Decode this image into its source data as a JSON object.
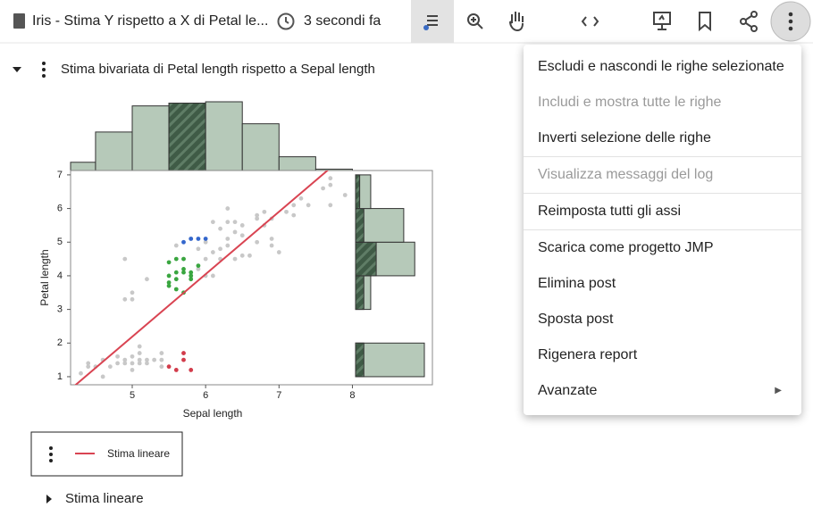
{
  "header": {
    "title": "Iris - Stima Y rispetto a X di Petal le...",
    "timestamp": "3 secondi fa"
  },
  "report": {
    "title": "Stima bivariata di Petal length rispetto a Sepal length",
    "chart": {
      "type": "scatter",
      "x_label": "Sepal length",
      "y_label": "Petal length",
      "xlim": [
        4.16,
        9.09
      ],
      "ylim": [
        0.76,
        7.13
      ],
      "xticks": [
        5,
        6,
        7,
        8
      ],
      "yticks": [
        1,
        2,
        3,
        4,
        5,
        6,
        7
      ],
      "series": [
        {
          "color": "#c8c8c8",
          "x": [
            4.3,
            4.4,
            4.5,
            4.6,
            4.7,
            4.8,
            4.8,
            4.9,
            4.9,
            5.0,
            5.0,
            5.0,
            5.1,
            5.1,
            5.1,
            5.1,
            5.2,
            5.3,
            5.4,
            5.4,
            5.4,
            5.2,
            4.4,
            4.6,
            4.9,
            5.0,
            5.0,
            5.2,
            4.9,
            5.6,
            5.8,
            6.0,
            6.1,
            6.2,
            6.3,
            6.3,
            6.4,
            6.5,
            6.7,
            6.9,
            7.2,
            7.7,
            7.7,
            7.9,
            7.6,
            7.3,
            7.1,
            6.8,
            6.7,
            6.6,
            6.5,
            6.4,
            6.2,
            6.1,
            6.0,
            5.9,
            6.3,
            6.4,
            6.5,
            6.7,
            6.9,
            7.0,
            6.9,
            6.3,
            6.1,
            5.8,
            5.7,
            5.9,
            6.0,
            6.2,
            7.2,
            7.4,
            7.7,
            6.8
          ],
          "y": [
            1.1,
            1.4,
            1.3,
            1.5,
            1.3,
            1.6,
            1.4,
            1.4,
            1.5,
            1.4,
            1.6,
            1.2,
            1.4,
            1.5,
            1.7,
            1.9,
            1.5,
            1.5,
            1.3,
            1.5,
            1.7,
            1.4,
            1.3,
            1.0,
            3.3,
            3.5,
            3.3,
            3.9,
            4.5,
            4.9,
            4.0,
            4.5,
            4.7,
            4.8,
            4.9,
            5.6,
            5.3,
            5.5,
            5.8,
            5.7,
            6.1,
            6.9,
            6.7,
            6.4,
            6.6,
            6.3,
            5.9,
            5.5,
            5.0,
            4.6,
            4.6,
            4.5,
            4.5,
            4.0,
            4.0,
            4.2,
            5.1,
            5.6,
            5.2,
            5.7,
            5.1,
            4.7,
            4.9,
            6.0,
            5.6,
            5.1,
            4.5,
            4.8,
            5.0,
            5.4,
            5.8,
            6.1,
            6.1,
            5.9
          ]
        },
        {
          "color": "#3aa640",
          "x": [
            5.5,
            5.5,
            5.5,
            5.6,
            5.6,
            5.6,
            5.7,
            5.7,
            5.7,
            5.8,
            5.8,
            5.5,
            5.6,
            5.8,
            5.7,
            5.9
          ],
          "y": [
            3.8,
            4.0,
            3.7,
            4.1,
            3.9,
            4.5,
            4.2,
            3.5,
            4.1,
            3.9,
            4.1,
            4.4,
            3.6,
            4.0,
            4.5,
            4.3
          ]
        },
        {
          "color": "#3366cc",
          "x": [
            5.7,
            5.8,
            5.9,
            6.0
          ],
          "y": [
            5.0,
            5.1,
            5.1,
            5.1
          ]
        },
        {
          "color": "#d23c4b",
          "x": [
            5.5,
            5.6,
            5.7,
            5.7,
            5.8
          ],
          "y": [
            1.3,
            1.2,
            1.7,
            1.5,
            1.2
          ]
        }
      ],
      "fit": {
        "name": "Stima lineare",
        "color": "#d94452",
        "intercept": -7.101,
        "slope": 1.858
      },
      "top_histogram": {
        "bins": [
          4.0,
          4.5,
          5.0,
          5.5,
          6.0,
          6.5,
          7.0,
          7.5,
          8.0
        ],
        "counts": [
          6,
          28,
          47,
          49,
          50,
          34,
          10,
          1
        ],
        "selected": [
          0,
          0,
          0,
          49,
          0,
          0,
          0,
          0
        ]
      },
      "right_histogram": {
        "bins": [
          1,
          2,
          3,
          4,
          5,
          6,
          7
        ],
        "counts": [
          50,
          0,
          11,
          43,
          35,
          11
        ],
        "selected": [
          6,
          0,
          6,
          15,
          6,
          3
        ]
      }
    },
    "outline": {
      "label": "Stima lineare"
    }
  },
  "menu": {
    "groups": [
      {
        "items": [
          {
            "label": "Escludi e nascondi le righe selezionate",
            "enabled": true
          },
          {
            "label": "Includi e mostra tutte le righe",
            "enabled": false
          },
          {
            "label": "Inverti selezione delle righe",
            "enabled": true
          }
        ]
      },
      {
        "items": [
          {
            "label": "Visualizza messaggi del log",
            "enabled": false
          }
        ]
      },
      {
        "items": [
          {
            "label": "Reimposta tutti gli assi",
            "enabled": true
          }
        ]
      },
      {
        "items": [
          {
            "label": "Scarica come progetto JMP",
            "enabled": true
          },
          {
            "label": "Elimina post",
            "enabled": true
          },
          {
            "label": "Sposta post",
            "enabled": true
          },
          {
            "label": "Rigenera report",
            "enabled": true
          },
          {
            "label": "Avanzate",
            "enabled": true,
            "submenu": true
          }
        ]
      }
    ]
  }
}
